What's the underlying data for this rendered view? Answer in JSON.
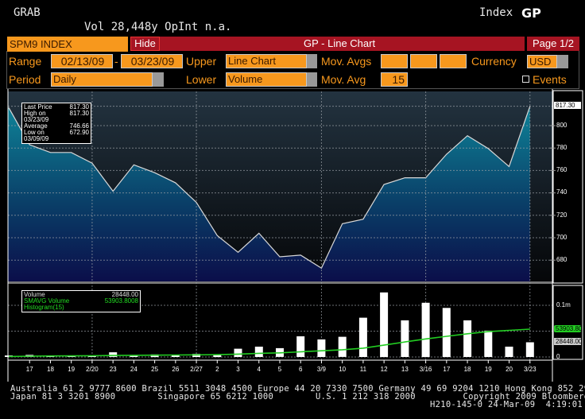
{
  "header": {
    "function": "GRAB",
    "volume_line": "Vol 28,448y OpInt n.a.",
    "market_sector": "Index",
    "function_code": "GP"
  },
  "titlebar": {
    "security": "SPM9 INDEX",
    "hide_label": "Hide",
    "title": "GP - Line Chart",
    "page": "Page 1/2"
  },
  "controls": {
    "range_label": "Range",
    "range_start": "02/13/09",
    "range_sep": "-",
    "range_end": "03/23/09",
    "upper_label": "Upper",
    "upper_value": "Line Chart",
    "mov_avgs_label": "Mov. Avgs",
    "mov_avgs_values": [
      "",
      "",
      ""
    ],
    "currency_label": "Currency",
    "currency_value": "USD",
    "period_label": "Period",
    "period_value": "Daily",
    "lower_label": "Lower",
    "lower_value": "Volume",
    "mov_avg_label": "Mov. Avg",
    "mov_avg_value": "15",
    "events_label": "Events"
  },
  "upper_legend": {
    "rows": [
      {
        "label": "Last Price",
        "value": "817.30"
      },
      {
        "label": "High on 03/23/09",
        "value": "817.30"
      },
      {
        "label": "Average",
        "value": "746.66"
      },
      {
        "label": "Low on 03/09/09",
        "value": "672.90"
      }
    ]
  },
  "lower_legend": {
    "rows": [
      {
        "label": "Volume",
        "value": "28448.00"
      },
      {
        "label": "SMAVG Volume Histogram(15)",
        "value": "53903.8008"
      }
    ]
  },
  "upper_axis": {
    "ticks": [
      "800",
      "780",
      "760",
      "740",
      "720",
      "700",
      "680"
    ],
    "last_tag": "817.30"
  },
  "lower_axis": {
    "ticks": [
      "0.1m",
      "0"
    ],
    "smavg_tag": "53903.80",
    "volume_tag": "28448.00"
  },
  "colors": {
    "accent_orange": "#f7981d",
    "title_red": "#a61422",
    "price_fill_top": "#0e7f95",
    "price_fill_bottom": "#0a1448",
    "smavg_green": "#22dd22",
    "volume_bar": "#ffffff"
  },
  "footer": {
    "line1": "Australia 61 2 9777 8600 Brazil 5511 3048 4500 Europe 44 20 7330 7500 Germany 49 69 9204 1210 Hong Kong 852 2977 6000",
    "line2": "Japan 81 3 3201 8900        Singapore 65 6212 1000        U.S. 1 212 318 2000         Copyright 2009 Bloomberg Finance L.P.",
    "line3": "H210-145-0 24-Mar-09  4:19:01"
  },
  "chart_data": [
    {
      "type": "area",
      "title": "GP - Line Chart (SPM9 INDEX)",
      "xlabel": "",
      "ylabel": "Last Price",
      "x": [
        "2/13",
        "2/17",
        "2/18",
        "2/19",
        "2/20",
        "2/23",
        "2/24",
        "2/25",
        "2/26",
        "2/27",
        "3/2",
        "3/3",
        "3/4",
        "3/5",
        "3/6",
        "3/9",
        "3/10",
        "3/11",
        "3/12",
        "3/13",
        "3/16",
        "3/17",
        "3/18",
        "3/19",
        "3/20",
        "3/23"
      ],
      "series": [
        {
          "name": "Last Price",
          "values": [
            816,
            783,
            776,
            776,
            766.5,
            741.5,
            765,
            758,
            749,
            731.5,
            702,
            687,
            704,
            683,
            684.5,
            672.9,
            712.5,
            716.5,
            747.5,
            753.5,
            753.5,
            774.5,
            791,
            779.5,
            763.5,
            817.3
          ]
        }
      ],
      "tick_labels": [
        "17",
        "18",
        "19",
        "2/20",
        "23",
        "24",
        "25",
        "26",
        "2/27",
        "2",
        "3",
        "4",
        "5",
        "6",
        "3/9",
        "10",
        "11",
        "12",
        "13",
        "3/16",
        "17",
        "18",
        "19",
        "20",
        "3/23"
      ],
      "ylim": [
        665,
        830
      ],
      "yticks": [
        680,
        700,
        720,
        740,
        760,
        780,
        800
      ],
      "grid": true,
      "axis_position": "right"
    },
    {
      "type": "bar",
      "title": "Volume",
      "x": [
        "2/13",
        "2/17",
        "2/18",
        "2/19",
        "2/20",
        "2/23",
        "2/24",
        "2/25",
        "2/26",
        "2/27",
        "3/2",
        "3/3",
        "3/4",
        "3/5",
        "3/6",
        "3/9",
        "3/10",
        "3/11",
        "3/12",
        "3/13",
        "3/16",
        "3/17",
        "3/18",
        "3/19",
        "3/20",
        "3/23"
      ],
      "series": [
        {
          "name": "Volume",
          "values": [
            3000,
            4000,
            2000,
            2000,
            2000,
            9000,
            2000,
            5000,
            4000,
            6000,
            5000,
            16000,
            20000,
            17000,
            40000,
            34000,
            39000,
            76000,
            125000,
            71000,
            105000,
            95000,
            71000,
            51000,
            20000,
            28448
          ]
        },
        {
          "name": "SMAVG Volume Histogram(15)",
          "type": "line",
          "values": [
            1000,
            1500,
            2000,
            2200,
            2500,
            3000,
            3200,
            3500,
            3800,
            4200,
            4500,
            5500,
            7000,
            8000,
            10000,
            12000,
            14000,
            17000,
            23000,
            29000,
            35000,
            40000,
            45000,
            49000,
            51500,
            53903.8
          ]
        }
      ],
      "ylim": [
        0,
        130000
      ],
      "yticks": [
        0,
        100000
      ],
      "ytick_labels": [
        "0",
        "0.1m"
      ],
      "grid": true
    }
  ]
}
